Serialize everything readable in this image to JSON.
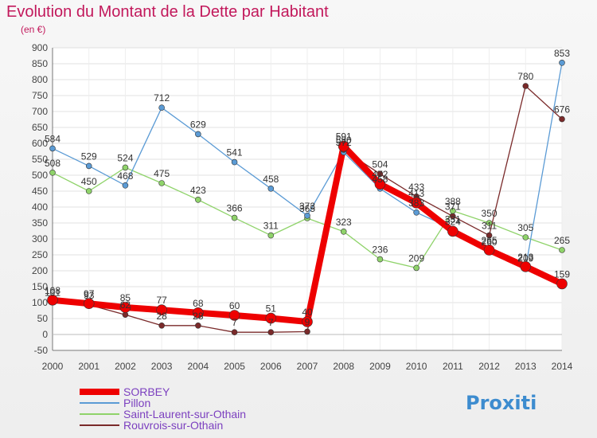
{
  "chart_data": {
    "type": "line",
    "title": "Evolution du Montant de la Dette par Habitant",
    "subtitle": "(en €)",
    "xlabel": "",
    "ylabel": "",
    "x": [
      "2000",
      "2001",
      "2002",
      "2003",
      "2004",
      "2005",
      "2006",
      "2007",
      "2008",
      "2009",
      "2010",
      "2011",
      "2012",
      "2013",
      "2014"
    ],
    "ylim": [
      -50,
      900
    ],
    "yticks": [
      -50,
      0,
      50,
      100,
      150,
      200,
      250,
      300,
      350,
      400,
      450,
      500,
      550,
      600,
      650,
      700,
      750,
      800,
      850,
      900
    ],
    "grid": true,
    "legend_position": "bottom-left",
    "series": [
      {
        "name": "SORBEY",
        "color": "#ee0000",
        "values": [
          108,
          97,
          85,
          77,
          68,
          60,
          51,
          40,
          591,
          472,
          413,
          324,
          265,
          213,
          159
        ]
      },
      {
        "name": "Pillon",
        "color": "#5b9bd5",
        "values": [
          584,
          529,
          468,
          712,
          629,
          541,
          458,
          373,
          572,
          458,
          383,
          331,
          260,
          209,
          853
        ]
      },
      {
        "name": "Saint-Laurent-sur-Othain",
        "color": "#8fd36a",
        "values": [
          508,
          450,
          524,
          475,
          423,
          366,
          311,
          365,
          323,
          236,
          209,
          388,
          350,
          305,
          265
        ]
      },
      {
        "name": "Rouvrois-sur-Othain",
        "color": "#7a2a2a",
        "values": [
          101,
          93,
          62,
          28,
          28,
          7,
          7,
          9,
          580,
          504,
          433,
          371,
          311,
          780,
          676
        ]
      }
    ],
    "point_labels": [
      {
        "series": 0,
        "labels": [
          "108",
          "97",
          "85",
          "77",
          "68",
          "60",
          "51",
          "40",
          "591",
          "472",
          "413",
          "324",
          "265",
          "213",
          "159"
        ]
      },
      {
        "series": 1,
        "labels": [
          "584",
          "529",
          "468",
          "712",
          "629",
          "541",
          "458",
          "373",
          "572",
          "458",
          "383",
          "331",
          "260",
          "209",
          "853"
        ]
      },
      {
        "series": 2,
        "labels": [
          "508",
          "450",
          "524",
          "475",
          "423",
          "366",
          "311",
          "365",
          "323",
          "236",
          "209",
          "388",
          "350",
          "305",
          "265"
        ]
      },
      {
        "series": 3,
        "labels": [
          "101",
          "93",
          "62",
          "28",
          "28",
          "7",
          "7",
          "9",
          "580",
          "504",
          "433",
          "371",
          "311",
          "780",
          "676"
        ]
      }
    ]
  },
  "colors": {
    "title": "#c2185b",
    "axis": "#555555",
    "grid": "#dddddd",
    "legend_text": "#7b3fbf"
  },
  "logo": {
    "text": "Proxiti"
  }
}
